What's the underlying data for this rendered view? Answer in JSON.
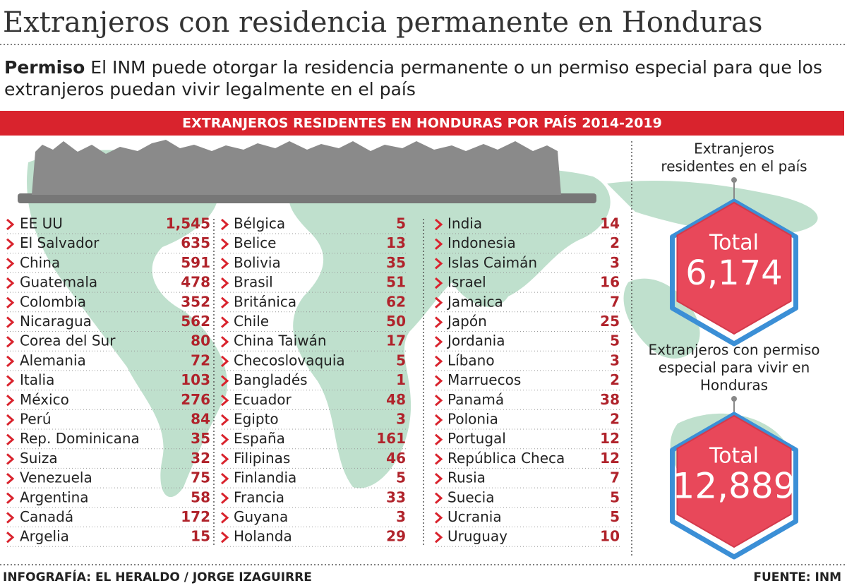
{
  "header": {
    "title": "Extranjeros con residencia permanente en Honduras",
    "lead_bold": "Permiso",
    "lead_line1": "El INM puede otorgar la residencia permanente o un permiso especial para que los",
    "lead_line2": "extranjeros puedan vivir legalmente en el país"
  },
  "banner": "EXTRANJEROS RESIDENTES EN HONDURAS POR PAÍS 2014-2019",
  "columns": [
    [
      [
        "EE UU",
        "1,545"
      ],
      [
        "El Salvador",
        635
      ],
      [
        "China",
        591
      ],
      [
        "Guatemala",
        478
      ],
      [
        "Colombia",
        352
      ],
      [
        "Nicaragua",
        562
      ],
      [
        "Corea del Sur",
        80
      ],
      [
        "Alemania",
        72
      ],
      [
        "Italia",
        103
      ],
      [
        "México",
        276
      ],
      [
        "Perú",
        84
      ],
      [
        "Rep. Dominicana",
        35
      ],
      [
        "Suiza",
        32
      ],
      [
        "Venezuela",
        75
      ],
      [
        "Argentina",
        58
      ],
      [
        "Canadá",
        172
      ],
      [
        "Argelia",
        15
      ]
    ],
    [
      [
        "Bélgica",
        5
      ],
      [
        "Belice",
        13
      ],
      [
        "Bolivia",
        35
      ],
      [
        "Brasil",
        51
      ],
      [
        "Británica",
        62
      ],
      [
        "Chile",
        50
      ],
      [
        "China Taiwán",
        17
      ],
      [
        "Checoslovaquia",
        5
      ],
      [
        "Bangladés",
        1
      ],
      [
        "Ecuador",
        48
      ],
      [
        "Egipto",
        3
      ],
      [
        "España",
        161
      ],
      [
        "Filipinas",
        46
      ],
      [
        "Finlandia",
        5
      ],
      [
        "Francia",
        33
      ],
      [
        "Guyana",
        3
      ],
      [
        "Holanda",
        29
      ]
    ],
    [
      [
        "India",
        14
      ],
      [
        "Indonesia",
        2
      ],
      [
        "Islas Caimán",
        3
      ],
      [
        "Israel",
        16
      ],
      [
        "Jamaica",
        7
      ],
      [
        "Japón",
        25
      ],
      [
        "Jordania",
        5
      ],
      [
        "Líbano",
        3
      ],
      [
        "Marruecos",
        2
      ],
      [
        "Panamá",
        38
      ],
      [
        "Polonia",
        2
      ],
      [
        "Portugal",
        12
      ],
      [
        "República Checa",
        12
      ],
      [
        "Rusia",
        7
      ],
      [
        "Suecia",
        5
      ],
      [
        "Ucrania",
        5
      ],
      [
        "Uruguay",
        10
      ]
    ]
  ],
  "totals": [
    {
      "label_lines": [
        "Extranjeros",
        "residentes en el país"
      ],
      "word": "Total",
      "value": "6,174"
    },
    {
      "label_lines": [
        "Extranjeros con permiso",
        "especial para vivir en",
        "Honduras"
      ],
      "word": "Total",
      "value": "12,889"
    }
  ],
  "footer": {
    "credit": "INFOGRAFÍA: EL HERALDO / JORGE IZAGUIRRE",
    "source": "FUENTE: INM"
  }
}
